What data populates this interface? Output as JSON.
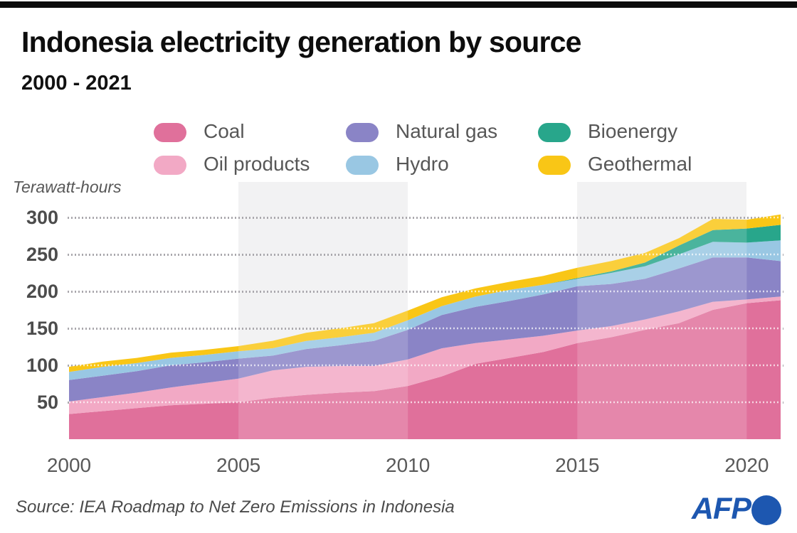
{
  "header": {
    "title": "Indonesia electricity generation by source",
    "subtitle": "2000 - 2021"
  },
  "axis": {
    "unit_label": "Terawatt-hours"
  },
  "legend": {
    "rows": [
      [
        "Coal",
        "Natural gas",
        "Bioenergy"
      ],
      [
        "Oil products",
        "Hydro",
        "Geothermal"
      ]
    ]
  },
  "chart_data": {
    "type": "area",
    "stacked": true,
    "title": "Indonesia electricity generation by source",
    "subtitle": "2000 - 2021",
    "ylabel": "Terawatt-hours",
    "xlabel": "",
    "x": [
      2000,
      2001,
      2002,
      2003,
      2004,
      2005,
      2006,
      2007,
      2008,
      2009,
      2010,
      2011,
      2012,
      2013,
      2014,
      2015,
      2016,
      2017,
      2018,
      2019,
      2020,
      2021
    ],
    "xticks": [
      2000,
      2005,
      2010,
      2015,
      2020
    ],
    "yticks": [
      50,
      100,
      150,
      200,
      250,
      300
    ],
    "ylim": [
      0,
      325
    ],
    "grid": "dotted-horizontal",
    "legend_position": "top",
    "shaded_year_bands": [
      [
        2005,
        2010
      ],
      [
        2015,
        2020
      ]
    ],
    "series": [
      {
        "name": "Coal",
        "color": "#e0709b",
        "values": [
          34,
          38,
          42,
          46,
          48,
          50,
          56,
          60,
          63,
          65,
          72,
          85,
          102,
          110,
          118,
          130,
          138,
          148,
          157,
          175,
          184,
          188
        ]
      },
      {
        "name": "Oil products",
        "color": "#f2a9c5",
        "values": [
          17,
          19,
          21,
          24,
          28,
          32,
          37,
          38,
          36,
          34,
          36,
          38,
          28,
          25,
          22,
          17,
          15,
          14,
          16,
          11,
          5,
          5
        ]
      },
      {
        "name": "Natural gas",
        "color": "#8a84c6",
        "values": [
          29,
          29,
          29,
          30,
          28,
          27,
          20,
          24,
          28,
          34,
          40,
          45,
          49,
          52,
          56,
          60,
          57,
          55,
          58,
          60,
          57,
          48
        ]
      },
      {
        "name": "Hydro",
        "color": "#99c7e3",
        "values": [
          11,
          12,
          11,
          10,
          10,
          10,
          10,
          11,
          11,
          11,
          13,
          12,
          14,
          15,
          13,
          10,
          15,
          17,
          19,
          21,
          20,
          28
        ]
      },
      {
        "name": "Bioenergy",
        "color": "#28a68b",
        "values": [
          0,
          0,
          0,
          0,
          0,
          0,
          0,
          0,
          0,
          0,
          0,
          0,
          0,
          0,
          0,
          1,
          2,
          5,
          12,
          16,
          19,
          21
        ]
      },
      {
        "name": "Geothermal",
        "color": "#f9c616",
        "values": [
          7,
          7,
          7,
          7,
          7,
          7,
          10,
          11,
          12,
          13,
          13,
          12,
          11,
          11,
          12,
          14,
          14,
          13,
          10,
          15,
          12,
          14
        ]
      }
    ]
  },
  "footer": {
    "source": "Source: IEA Roadmap to Net Zero Emissions in Indonesia",
    "logo_text": "AFP"
  },
  "colors": {
    "coal": "#e0709b",
    "oil_products": "#f2a9c5",
    "natural_gas": "#8a84c6",
    "hydro": "#99c7e3",
    "bioenergy": "#28a68b",
    "geothermal": "#f9c616",
    "shaded_band": "#f2f2f3",
    "gridline": "#aaa8ad",
    "afp_blue": "#1d57b0",
    "top_bar": "#0c0c0c"
  }
}
